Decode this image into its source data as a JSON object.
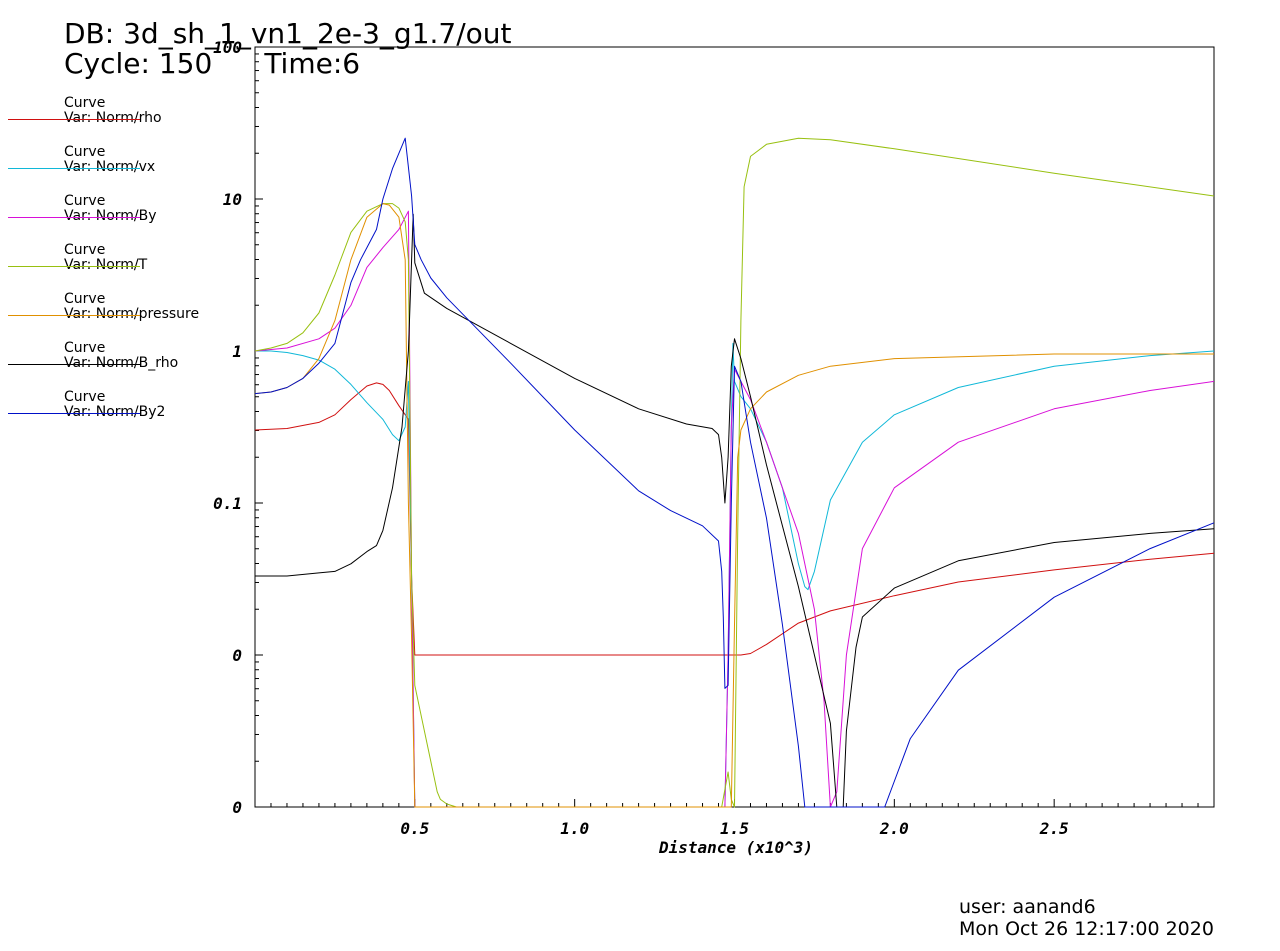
{
  "header": {
    "db": "DB: 3d_sh_1_vn1_2e-3_g1.7/out",
    "cycle": "Cycle: 150",
    "time": "Time:6"
  },
  "footer": {
    "user": "user: aanand6",
    "date": "Mon Oct 26 12:17:00 2020"
  },
  "legend": [
    {
      "title": "Curve",
      "var": "Var: Norm/rho",
      "color": "#d01010"
    },
    {
      "title": "Curve",
      "var": "Var: Norm/vx",
      "color": "#10b8d8"
    },
    {
      "title": "Curve",
      "var": "Var: Norm/By",
      "color": "#d810d8"
    },
    {
      "title": "Curve",
      "var": "Var: Norm/T",
      "color": "#98c010"
    },
    {
      "title": "Curve",
      "var": "Var: Norm/pressure",
      "color": "#e09000"
    },
    {
      "title": "Curve",
      "var": "Var: Norm/B_rho",
      "color": "#000000"
    },
    {
      "title": "Curve",
      "var": "Var: Norm/By2",
      "color": "#0010c8"
    }
  ],
  "chart_data": {
    "type": "line",
    "xlabel": "Distance (x10^3)",
    "ylabel": "",
    "xlim": [
      0,
      3.0
    ],
    "x_ticks": [
      "0.5",
      "1.0",
      "1.5",
      "2.0",
      "2.5"
    ],
    "x_tick_values": [
      0.5,
      1.0,
      1.5,
      2.0,
      2.5
    ],
    "y_ticks": [
      "0",
      "0",
      "0.1",
      "1",
      "10",
      "100"
    ],
    "y_tick_values": [
      0,
      1,
      2,
      3,
      4,
      5
    ],
    "y_scale": "log-style (decades)",
    "grid": false,
    "legend_position": "left",
    "series": [
      {
        "name": "Curve Var: Norm/rho",
        "color": "#d01010",
        "x": [
          0,
          0.1,
          0.2,
          0.25,
          0.3,
          0.35,
          0.38,
          0.4,
          0.42,
          0.45,
          0.48,
          0.49,
          0.5,
          0.6,
          1.0,
          1.4,
          1.5,
          1.52,
          1.55,
          1.6,
          1.7,
          1.8,
          2.0,
          2.2,
          2.5,
          2.8,
          3.0
        ],
        "y": [
          2.48,
          2.49,
          2.53,
          2.58,
          2.68,
          2.77,
          2.79,
          2.78,
          2.74,
          2.64,
          2.55,
          1.5,
          1.0,
          1.0,
          1.0,
          1.0,
          1.0,
          1.0,
          1.01,
          1.07,
          1.21,
          1.29,
          1.39,
          1.48,
          1.56,
          1.63,
          1.67
        ]
      },
      {
        "name": "Curve Var: Norm/vx",
        "color": "#10b8d8",
        "x": [
          0,
          0.05,
          0.1,
          0.15,
          0.2,
          0.25,
          0.3,
          0.35,
          0.4,
          0.43,
          0.45,
          0.47,
          0.48,
          0.49,
          0.5,
          1.47,
          1.48,
          1.49,
          1.495,
          1.5,
          1.52,
          1.55,
          1.6,
          1.65,
          1.68,
          1.7,
          1.72,
          1.73,
          1.75,
          1.8,
          1.9,
          2.0,
          2.2,
          2.5,
          2.8,
          3.0
        ],
        "y": [
          3.0,
          3.0,
          2.99,
          2.97,
          2.94,
          2.88,
          2.78,
          2.66,
          2.55,
          2.45,
          2.41,
          2.5,
          2.8,
          1.5,
          0.0,
          0.0,
          1.0,
          2.5,
          3.05,
          2.8,
          2.7,
          2.62,
          2.4,
          2.1,
          1.8,
          1.6,
          1.45,
          1.43,
          1.55,
          2.02,
          2.4,
          2.58,
          2.76,
          2.9,
          2.97,
          3.0
        ]
      },
      {
        "name": "Curve Var: Norm/By",
        "color": "#d810d8",
        "x": [
          0,
          0.1,
          0.2,
          0.25,
          0.3,
          0.35,
          0.4,
          0.45,
          0.48,
          0.49,
          0.5,
          1.47,
          1.48,
          1.49,
          1.5,
          1.52,
          1.55,
          1.6,
          1.65,
          1.7,
          1.75,
          1.78,
          1.8,
          1.82,
          1.85,
          1.9,
          2.0,
          2.2,
          2.5,
          2.8,
          3.0
        ],
        "y": [
          3.0,
          3.02,
          3.08,
          3.15,
          3.3,
          3.55,
          3.68,
          3.8,
          3.92,
          1.5,
          0.0,
          0.0,
          1.0,
          2.5,
          2.88,
          2.8,
          2.68,
          2.4,
          2.1,
          1.8,
          1.3,
          0.7,
          0.0,
          0.1,
          1.0,
          1.7,
          2.1,
          2.4,
          2.62,
          2.74,
          2.8
        ]
      },
      {
        "name": "Curve Var: Norm/T",
        "color": "#98c010",
        "x": [
          0,
          0.05,
          0.1,
          0.15,
          0.2,
          0.25,
          0.3,
          0.35,
          0.4,
          0.43,
          0.45,
          0.47,
          0.48,
          0.49,
          0.5,
          0.52,
          0.55,
          0.57,
          0.58,
          0.6,
          0.63,
          1.46,
          1.48,
          1.49,
          1.5,
          1.51,
          1.52,
          1.53,
          1.55,
          1.6,
          1.7,
          1.8,
          2.0,
          2.5,
          3.0
        ],
        "y": [
          3.0,
          3.02,
          3.05,
          3.12,
          3.25,
          3.5,
          3.78,
          3.92,
          3.97,
          3.97,
          3.94,
          3.85,
          3.6,
          1.5,
          0.8,
          0.6,
          0.3,
          0.1,
          0.05,
          0.02,
          0.0,
          0.0,
          0.23,
          0.05,
          0.0,
          1.8,
          3.2,
          4.08,
          4.28,
          4.36,
          4.4,
          4.39,
          4.33,
          4.17,
          4.02
        ]
      },
      {
        "name": "Curve Var: Norm/pressure",
        "color": "#e09000",
        "x": [
          0,
          0.05,
          0.1,
          0.15,
          0.2,
          0.25,
          0.3,
          0.35,
          0.4,
          0.42,
          0.45,
          0.47,
          0.48,
          0.49,
          0.5,
          1.49,
          1.5,
          1.51,
          1.52,
          1.55,
          1.6,
          1.7,
          1.8,
          2.0,
          2.5,
          3.0
        ],
        "y": [
          2.72,
          2.73,
          2.76,
          2.82,
          2.95,
          3.2,
          3.6,
          3.88,
          3.97,
          3.96,
          3.88,
          3.6,
          2.0,
          1.1,
          0.0,
          0.0,
          1.2,
          2.3,
          2.48,
          2.62,
          2.73,
          2.84,
          2.9,
          2.95,
          2.98,
          2.98
        ]
      },
      {
        "name": "Curve Var: Norm/B_rho",
        "color": "#000000",
        "x": [
          0,
          0.1,
          0.2,
          0.25,
          0.3,
          0.35,
          0.38,
          0.4,
          0.43,
          0.46,
          0.48,
          0.49,
          0.495,
          0.5,
          0.53,
          0.6,
          0.8,
          1.0,
          1.2,
          1.35,
          1.43,
          1.45,
          1.46,
          1.47,
          1.48,
          1.49,
          1.5,
          1.52,
          1.55,
          1.6,
          1.65,
          1.7,
          1.75,
          1.8,
          1.82,
          1.84,
          1.85,
          1.88,
          1.9,
          2.0,
          2.2,
          2.5,
          2.8,
          3.0
        ],
        "y": [
          1.52,
          1.52,
          1.54,
          1.55,
          1.6,
          1.68,
          1.72,
          1.82,
          2.1,
          2.5,
          3.0,
          3.6,
          3.9,
          3.58,
          3.38,
          3.28,
          3.05,
          2.82,
          2.62,
          2.52,
          2.49,
          2.45,
          2.3,
          2.0,
          2.3,
          2.9,
          3.08,
          2.95,
          2.7,
          2.25,
          1.85,
          1.45,
          1.0,
          0.55,
          0.0,
          0.0,
          0.5,
          1.05,
          1.25,
          1.44,
          1.62,
          1.74,
          1.8,
          1.83
        ]
      },
      {
        "name": "Curve Var: Norm/By2",
        "color": "#0010c8",
        "x": [
          0,
          0.05,
          0.1,
          0.15,
          0.2,
          0.25,
          0.3,
          0.33,
          0.38,
          0.4,
          0.43,
          0.47,
          0.49,
          0.5,
          0.52,
          0.55,
          0.6,
          0.8,
          1.0,
          1.2,
          1.3,
          1.4,
          1.45,
          1.46,
          1.465,
          1.47,
          1.48,
          1.49,
          1.5,
          1.52,
          1.55,
          1.6,
          1.65,
          1.7,
          1.72,
          1.97,
          2.05,
          2.2,
          2.5,
          2.8,
          3.0
        ],
        "y": [
          2.72,
          2.73,
          2.76,
          2.82,
          2.92,
          3.05,
          3.45,
          3.6,
          3.8,
          4.0,
          4.2,
          4.4,
          4.02,
          3.7,
          3.6,
          3.48,
          3.35,
          2.92,
          2.48,
          2.08,
          1.95,
          1.85,
          1.75,
          1.55,
          1.25,
          0.78,
          0.8,
          2.0,
          2.9,
          2.8,
          2.4,
          1.9,
          1.2,
          0.4,
          0.0,
          0.0,
          0.45,
          0.9,
          1.38,
          1.7,
          1.87
        ]
      }
    ]
  }
}
